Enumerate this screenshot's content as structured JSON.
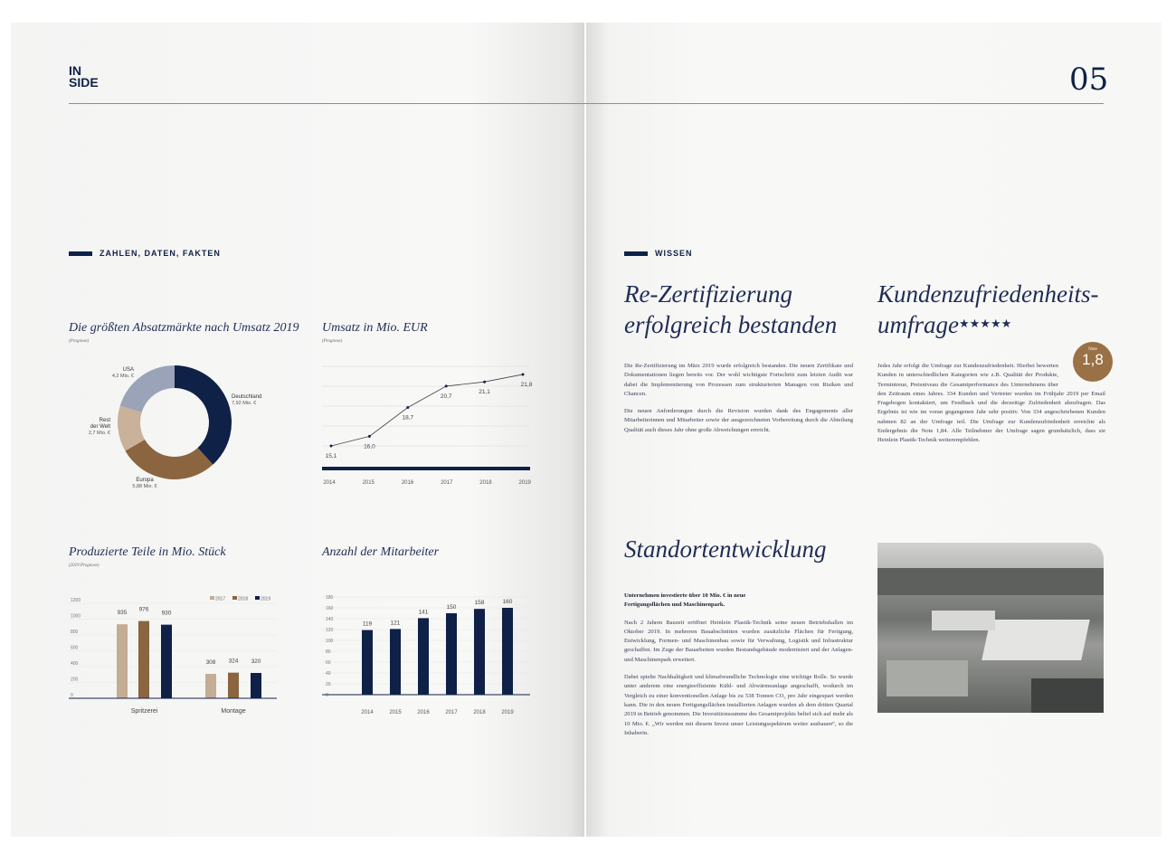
{
  "header": {
    "logo_line1": "IN",
    "logo_line2": "SIDE",
    "page_number": "05"
  },
  "left": {
    "section_tag": "ZAHLEN, DATEN, FAKTEN",
    "charts": {
      "markets": {
        "title": "Die größten Absatzmärkte nach Umsatz 2019",
        "subtitle": "(Prognose)"
      },
      "revenue": {
        "title": "Umsatz in Mio. EUR",
        "subtitle": "(Prognose)"
      },
      "parts": {
        "title": "Produzierte Teile in Mio. Stück",
        "subtitle": "(2019 Prognose)"
      },
      "staff": {
        "title": "Anzahl der Mitarbeiter"
      }
    }
  },
  "chart_data": [
    {
      "type": "pie",
      "donut": true,
      "title": "Die größten Absatzmärkte nach Umsatz 2019",
      "subtitle": "(Prognose)",
      "slices": [
        {
          "label": "Deutschland",
          "value_label": "7,92 Mio. €",
          "value": 7.92,
          "color": "#0f2147"
        },
        {
          "label": "Europa",
          "value_label": "5,88 Mio. €",
          "value": 5.88,
          "color": "#8a6540"
        },
        {
          "label": "Rest der Welt",
          "value_label": "2,7 Mio. €",
          "value": 2.7,
          "color": "#c9b19a"
        },
        {
          "label": "USA",
          "value_label": "4,2 Mio. €",
          "value": 4.2,
          "color": "#9aa3b8"
        }
      ]
    },
    {
      "type": "line",
      "title": "Umsatz in Mio. EUR",
      "subtitle": "(Prognose)",
      "x": [
        "2014",
        "2015",
        "2016",
        "2017",
        "2018",
        "2019"
      ],
      "values": [
        15.1,
        16.0,
        18.7,
        20.7,
        21.1,
        21.8
      ],
      "labels": [
        "15,1",
        "16,0",
        "18,7",
        "20,7",
        "21,1",
        "21,8"
      ],
      "grid": true
    },
    {
      "type": "bar",
      "title": "Produzierte Teile in Mio. Stück",
      "subtitle": "(2019 Prognose)",
      "categories": [
        "Spritzerei",
        "Montage"
      ],
      "series": [
        {
          "name": "2017",
          "values": [
            935,
            308
          ],
          "color": "#c4ad95"
        },
        {
          "name": "2018",
          "values": [
            976,
            324
          ],
          "color": "#8a6540"
        },
        {
          "name": "2019",
          "values": [
            930,
            320
          ],
          "color": "#0f2147"
        }
      ],
      "yticks": [
        "0",
        "200",
        "400",
        "600",
        "800",
        "1000",
        "1200"
      ],
      "ylim": [
        0,
        1200
      ],
      "legend": "top-right",
      "grid": true
    },
    {
      "type": "bar",
      "title": "Anzahl der Mitarbeiter",
      "categories": [
        "2014",
        "2015",
        "2016",
        "2017",
        "2018",
        "2019"
      ],
      "values": [
        119,
        121,
        141,
        150,
        158,
        160
      ],
      "yticks": [
        "0",
        "20",
        "40",
        "60",
        "80",
        "100",
        "120",
        "140",
        "160",
        "180"
      ],
      "ylim": [
        0,
        180
      ],
      "color": "#0f2147",
      "grid": true
    }
  ],
  "right": {
    "section_tag": "WISSEN",
    "cert": {
      "title_line1": "Re-Zertifizierung",
      "title_line2": "erfolgreich bestanden",
      "p1": "Die Re-Zertifizierung im März 2019 wurde erfolgreich bestanden. Die neuen Zertifikate und Dokumentationen liegen bereits vor. Der wohl wichtigste Fortschritt zum letzten Audit war dabei die Implementierung von Prozessen zum strukturierten Managen von Risiken und Chancen.",
      "p2": "Die neuen Anforderungen durch die Revision wurden dank des Engagements aller Mitarbeiterinnen und Mitarbeiter sowie der ausgezeichneten Vorbereitung durch die Abteilung Qualität auch dieses Jahr ohne große Abweichungen erreicht."
    },
    "survey": {
      "title_line1": "Kundenzufriedenheits-",
      "title_line2": "umfrage",
      "stars": "★★★★★",
      "stars_value": 5,
      "badge_label": "Note",
      "badge_value": "1,8",
      "p1": "Jedes Jahr erfolgt die Umfrage zur Kundenzufriedenheit. Hierbei bewerten Kunden in unterschiedlichen Kategorien wie z.B. Qualität der Produkte, Termintreue, Preisniveau die Gesamtperformance des Unternehmens über den Zeitraum eines Jahres. 334 Kunden und Vertreter wurden im Frühjahr 2019 per Email Fragebogen kontaktiert, um Feedback und die derzeitige Zufriedenheit abzufragen. Das Ergebnis ist wie im voran gegangenen Jahr sehr positiv. Von 334 angeschriebenen Kunden nahmen 82 an der Umfrage teil. Die Umfrage zur Kundenzufriedenheit erreichte als Endergebnis die Note 1,84. Alle Teilnehmer der Umfrage sagen grundsätzlich, dass sie Heinlein Plastik-Technik weiterempfehlen."
    },
    "site": {
      "title": "Standortentwicklung",
      "lead": "Unternehmen investierte über 10 Mio. € in neue Fertigungsflächen und Maschinenpark.",
      "p1": "Nach 2 Jahren Bauzeit eröffnet Heinlein Plastik-Technik seine neuen Betriebshallen im Oktober 2019. In mehreren Bauabschnitten wurden zusätzliche Flächen für Fertigung, Entwicklung, Formen- und Maschinenbau sowie für Verwaltung, Logistik und Infrastruktur geschaffen. Im Zuge der Bauarbeiten wurden Bestandsgebäude modernisiert und der Anlagen- und Maschinenpark erweitert.",
      "p2": "Dabei spielte Nachhaltigkeit und klimafreundliche Technologie eine wichtige Rolle. So wurde unter anderem eine energieeffiziente Kühl- und Abwärmeanlage angeschafft, wodurch im Vergleich zu einer konventionellen Anlage bis zu 538 Tonnen CO₂ pro Jahr eingespart werden kann. Die in den neuen Fertigungsflächen installierten Anlagen wurden ab dem dritten Quartal 2019 in Betrieb genommen. Die Investitionssumme des Gesamtprojekts belief sich auf mehr als 10 Mio. €. „Wir werden mit diesem Invest unser Leistungsspektrum weiter ausbauen“, so die Inhaberin."
    }
  }
}
